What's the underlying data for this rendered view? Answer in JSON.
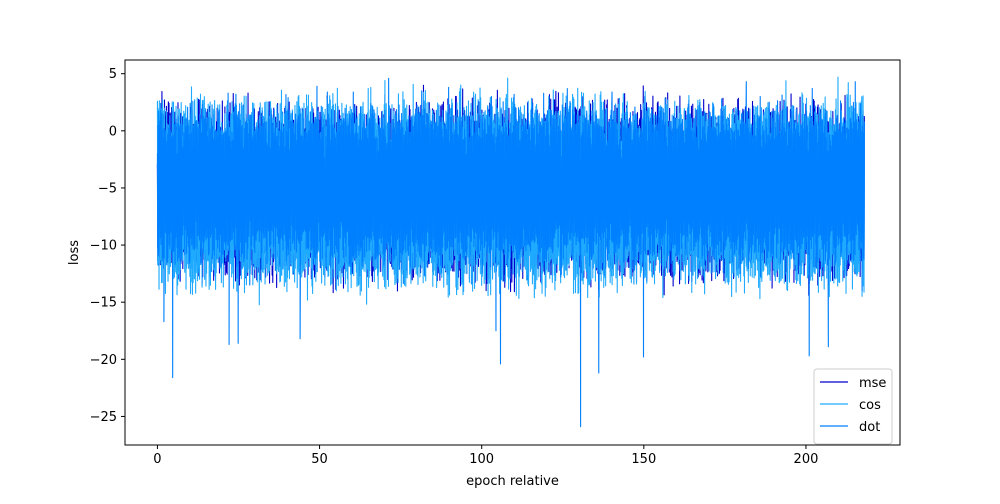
{
  "chart_data": {
    "type": "line",
    "title": "",
    "xlabel": "epoch relative",
    "ylabel": "loss",
    "xlim": [
      -10,
      229
    ],
    "ylim": [
      -27.5,
      6.2
    ],
    "xticks": [
      0,
      50,
      100,
      150,
      200
    ],
    "xtick_labels": [
      "0",
      "50",
      "100",
      "150",
      "200"
    ],
    "yticks": [
      5,
      0,
      -5,
      -10,
      -15,
      -20,
      -25
    ],
    "ytick_labels": [
      "5",
      "0",
      "−5",
      "−10",
      "−15",
      "−20",
      "−25"
    ],
    "grid": false,
    "legend_position": "lower-right",
    "series": [
      {
        "name": "mse",
        "color": "#0000cd",
        "x_range": [
          0,
          218
        ],
        "center": -5.0,
        "spread": [
          -12.5,
          2.0
        ],
        "points": []
      },
      {
        "name": "cos",
        "color": "#1eaaff",
        "x_range": [
          0,
          218
        ],
        "center": -5.0,
        "spread": [
          -13.5,
          2.5
        ],
        "points": []
      },
      {
        "name": "dot",
        "color": "#0080ff",
        "x_range": [
          0,
          218
        ],
        "center": -4.8,
        "spread": [
          -11.0,
          1.5
        ],
        "points": [
          [
            0.0,
            -3.2
          ],
          [
            0.4,
            -6.6
          ],
          [
            1.0,
            2.4
          ],
          [
            1.5,
            -11.4
          ],
          [
            2.0,
            -16.7
          ],
          [
            3.2,
            -11.5
          ],
          [
            4.7,
            -21.6
          ],
          [
            10.7,
            2.6
          ],
          [
            21.8,
            3.3
          ],
          [
            22.1,
            -18.7
          ],
          [
            24.9,
            -18.6
          ],
          [
            24.2,
            3.2
          ],
          [
            40.3,
            2.9
          ],
          [
            44.0,
            -18.2
          ],
          [
            49.2,
            3.9
          ],
          [
            52.4,
            3.4
          ],
          [
            60.4,
            3.4
          ],
          [
            71.3,
            4.6
          ],
          [
            81.5,
            3.5
          ],
          [
            89.8,
            3.8
          ],
          [
            103.0,
            3.0
          ],
          [
            104.4,
            -17.5
          ],
          [
            105.8,
            -20.4
          ],
          [
            110.0,
            3.2
          ],
          [
            126.4,
            3.7
          ],
          [
            130.5,
            -25.9
          ],
          [
            136.1,
            -21.2
          ],
          [
            140.2,
            3.4
          ],
          [
            149.9,
            -19.8
          ],
          [
            150.3,
            3.0
          ],
          [
            181.6,
            4.3
          ],
          [
            201.0,
            -19.7
          ],
          [
            206.9,
            -18.9
          ],
          [
            215.2,
            4.3
          ],
          [
            217.3,
            -14.0
          ],
          [
            218.0,
            -4.0
          ]
        ]
      }
    ]
  }
}
